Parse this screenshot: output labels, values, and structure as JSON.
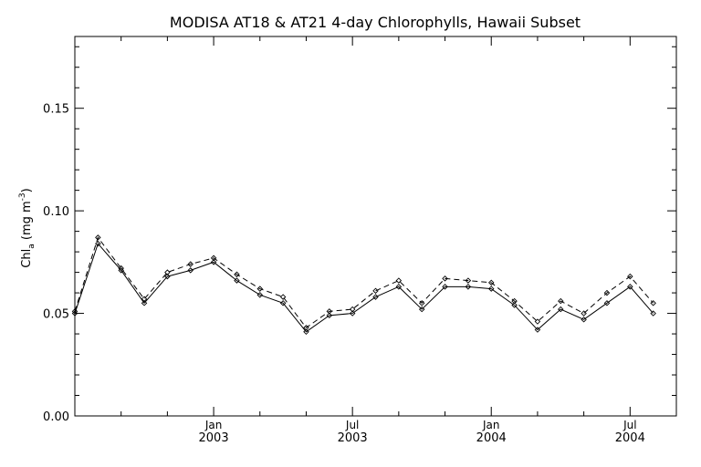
{
  "chart_data": {
    "type": "line",
    "title": "MODISA AT18 & AT21 4-day Chlorophylls, Hawaii Subset",
    "ylabel": {
      "base": "Chl",
      "sub": "a",
      "units_pre": " (mg m",
      "sup": "-3",
      "units_post": ")"
    },
    "xlabel": "",
    "ylim": [
      0.0,
      0.185
    ],
    "yticks": [
      {
        "value": 0.0,
        "label": "0.00"
      },
      {
        "value": 0.05,
        "label": "0.05"
      },
      {
        "value": 0.1,
        "label": "0.10"
      },
      {
        "value": 0.15,
        "label": "0.15"
      }
    ],
    "x_unit": "month",
    "xlim": [
      "2002-07",
      "2004-09"
    ],
    "xticks": [
      {
        "date": "2003-01",
        "month": "Jan",
        "year": "2003"
      },
      {
        "date": "2003-07",
        "month": "Jul",
        "year": "2003"
      },
      {
        "date": "2004-01",
        "month": "Jan",
        "year": "2004"
      },
      {
        "date": "2004-07",
        "month": "Jul",
        "year": "2004"
      }
    ],
    "x_minor_dates": [
      "2002-09",
      "2002-11",
      "2003-03",
      "2003-05",
      "2003-09",
      "2003-11",
      "2004-03",
      "2004-05"
    ],
    "x": [
      "2002-07",
      "2002-08",
      "2002-09",
      "2002-10",
      "2002-11",
      "2002-12",
      "2003-01",
      "2003-02",
      "2003-03",
      "2003-04",
      "2003-05",
      "2003-06",
      "2003-07",
      "2003-08",
      "2003-09",
      "2003-10",
      "2003-11",
      "2003-12",
      "2004-01",
      "2004-02",
      "2004-03",
      "2004-04",
      "2004-05",
      "2004-06",
      "2004-07",
      "2004-08"
    ],
    "series": [
      {
        "style": "solid",
        "color": "#000000",
        "values": [
          0.05,
          0.084,
          0.071,
          0.055,
          0.068,
          0.071,
          0.075,
          0.066,
          0.059,
          0.055,
          0.041,
          0.049,
          0.05,
          0.058,
          0.063,
          0.052,
          0.063,
          0.063,
          0.062,
          0.054,
          0.042,
          0.052,
          0.047,
          0.055,
          0.063,
          0.05
        ]
      },
      {
        "style": "dashed",
        "color": "#000000",
        "values": [
          0.051,
          0.087,
          0.072,
          0.057,
          0.07,
          0.074,
          0.077,
          0.069,
          0.062,
          0.058,
          0.043,
          0.051,
          0.052,
          0.061,
          0.066,
          0.055,
          0.067,
          0.066,
          0.065,
          0.056,
          0.046,
          0.056,
          0.05,
          0.06,
          0.068,
          0.055
        ]
      }
    ]
  }
}
